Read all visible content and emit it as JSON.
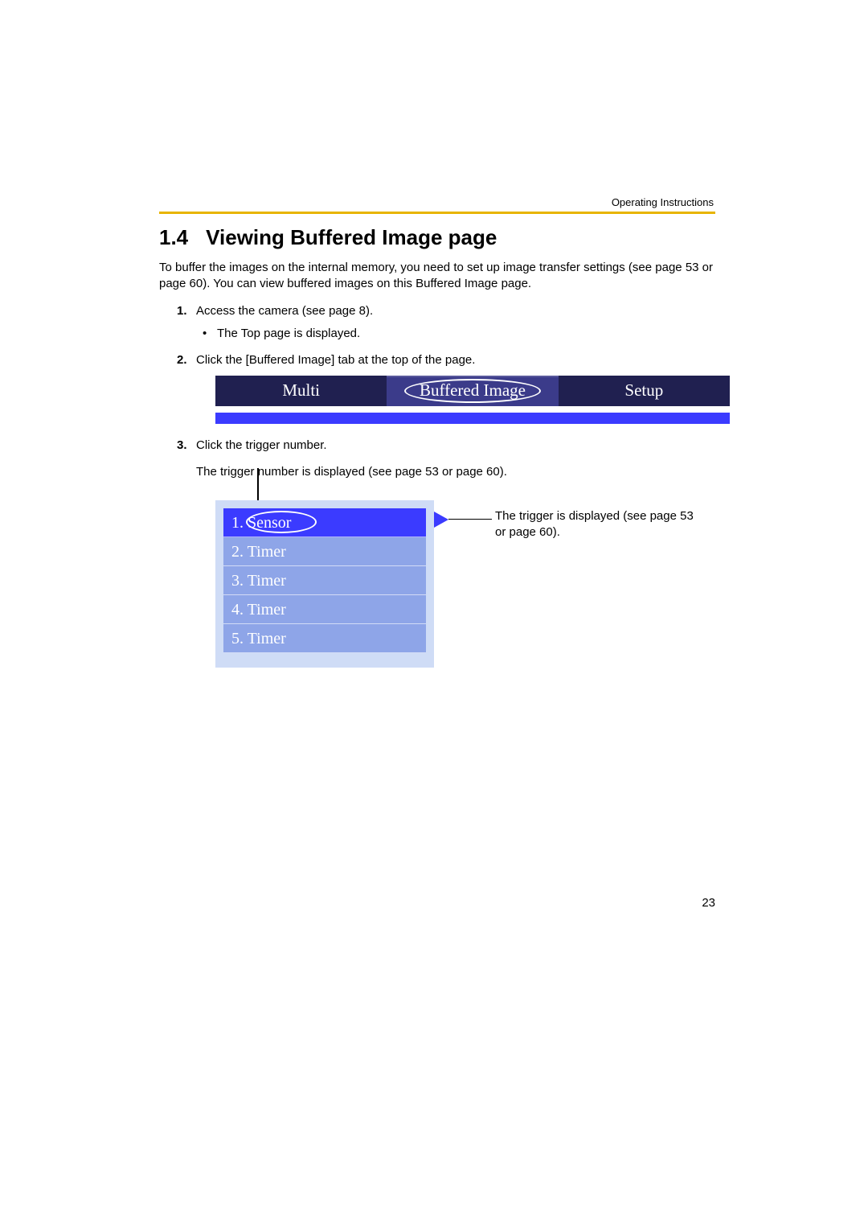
{
  "colors": {
    "header_rule": "#e8b400",
    "tab_dark": "#202050",
    "tab_mid": "#3b3b8a",
    "strip_blue": "#3b3bff",
    "panel_bg": "#cfdcf6",
    "row_sel": "#3b3bff",
    "row_reg": "#8ea5e8"
  },
  "doc_header": "Operating Instructions",
  "section": {
    "number": "1.4",
    "title": "Viewing Buffered Image page"
  },
  "intro": "To buffer the images on the internal memory, you need to set up image transfer settings (see page 53 or page 60). You can view buffered images on this Buffered Image page.",
  "steps": {
    "s1": "Access the camera (see page 8).",
    "s1_sub1": "The Top page is displayed.",
    "s2": "Click the [Buffered Image] tab at the top of the page.",
    "s3": "Click the trigger number.",
    "s3_note": "The trigger number is displayed (see page 53 or page 60)."
  },
  "tabs": {
    "t1": "Multi",
    "t2": "Buffered Image",
    "t3": "Setup"
  },
  "triggers": {
    "r1": "1. Sensor",
    "r2": "2. Timer",
    "r3": "3. Timer",
    "r4": "4. Timer",
    "r5": "5. Timer"
  },
  "callout": "The trigger is displayed (see page 53 or page 60).",
  "page_number": "23"
}
